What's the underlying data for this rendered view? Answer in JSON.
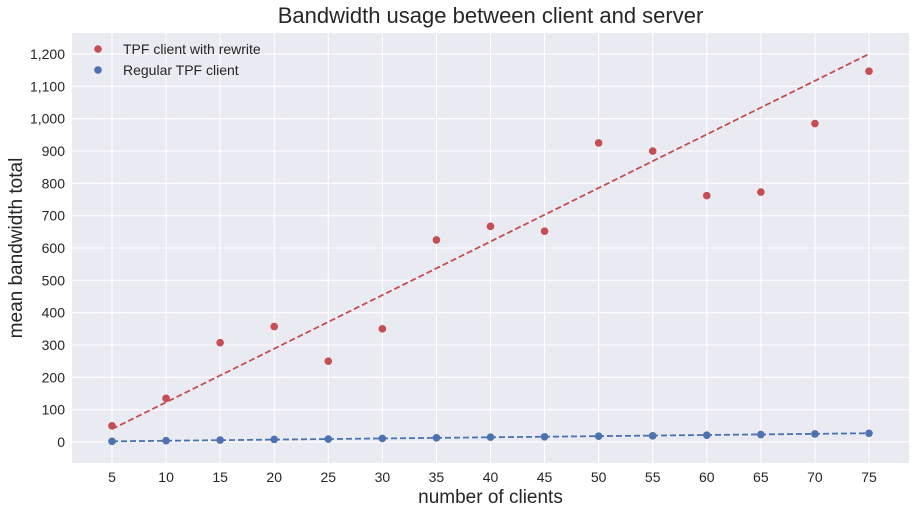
{
  "chart_data": {
    "type": "scatter",
    "title": "Bandwidth usage between client and server",
    "xlabel": "number of clients",
    "ylabel": "mean bandwidth total",
    "x": [
      5,
      10,
      15,
      20,
      25,
      30,
      35,
      40,
      45,
      50,
      55,
      60,
      65,
      70,
      75
    ],
    "x_ticks": [
      "5",
      "10",
      "15",
      "20",
      "25",
      "30",
      "35",
      "40",
      "45",
      "50",
      "55",
      "60",
      "65",
      "70",
      "75"
    ],
    "y_ticks": [
      0,
      100,
      200,
      300,
      400,
      500,
      600,
      700,
      800,
      900,
      1000,
      1100,
      1200
    ],
    "y_tick_labels": [
      "0",
      "100",
      "200",
      "300",
      "400",
      "500",
      "600",
      "700",
      "800",
      "900",
      "1,000",
      "1,100",
      "1,200"
    ],
    "xlim": [
      1.3,
      78.7
    ],
    "ylim": [
      -65,
      1265
    ],
    "grid": true,
    "legend_position": "top-left",
    "series": [
      {
        "name": "TPF client with rewrite",
        "color": "#C44E52",
        "marker": "circle",
        "values": [
          50,
          135,
          307,
          357,
          250,
          350,
          625,
          667,
          652,
          925,
          900,
          762,
          773,
          985,
          1147
        ],
        "trendline": {
          "style": "dashed",
          "start": [
            5,
            40
          ],
          "end": [
            75,
            1200
          ]
        }
      },
      {
        "name": "Regular TPF client",
        "color": "#4C72B0",
        "marker": "circle",
        "values": [
          2,
          4,
          6,
          8,
          9,
          11,
          13,
          15,
          16,
          18,
          19,
          21,
          23,
          25,
          27
        ],
        "trendline": {
          "style": "dashed",
          "start": [
            5,
            2
          ],
          "end": [
            75,
            27
          ]
        }
      }
    ]
  }
}
